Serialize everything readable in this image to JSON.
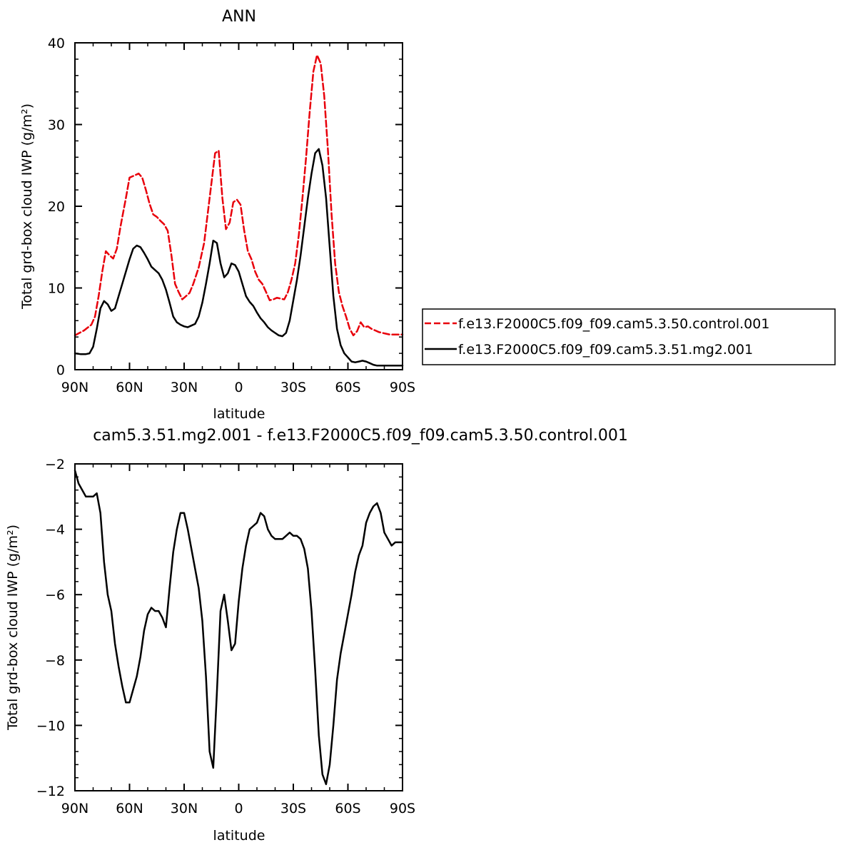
{
  "chart_data": [
    {
      "type": "line",
      "title": "ANN",
      "xlabel": "latitude",
      "ylabel": "Total grd-box cloud IWP (g/m²)",
      "xlim": [
        90,
        -90
      ],
      "ylim": [
        0,
        40
      ],
      "x_ticks": [
        90,
        60,
        30,
        0,
        -30,
        -60,
        -90
      ],
      "x_tick_labels": [
        "90N",
        "60N",
        "30N",
        "0",
        "30S",
        "60S",
        "90S"
      ],
      "y_ticks": [
        0,
        10,
        20,
        30,
        40
      ],
      "y_tick_labels": [
        "0",
        "10",
        "20",
        "30",
        "40"
      ],
      "legend_position": "right",
      "series": [
        {
          "name": "f.e13.F2000C5.f09_f09.cam5.3.50.control.001",
          "color": "#e8000b",
          "dash": "dashed",
          "x": [
            90,
            85,
            81,
            79,
            77,
            75,
            73,
            71,
            69,
            67,
            65,
            62,
            60,
            57,
            55,
            53,
            51,
            49,
            47,
            45,
            43,
            41,
            39,
            37,
            35,
            33,
            31,
            29,
            27,
            25,
            22,
            19,
            16,
            13,
            11,
            9,
            7,
            5,
            3,
            1,
            -1,
            -3,
            -5,
            -7,
            -9,
            -11,
            -13,
            -15,
            -17,
            -19,
            -21,
            -23,
            -25,
            -27,
            -29,
            -31,
            -33,
            -35,
            -37,
            -39,
            -41,
            -43,
            -45,
            -47,
            -49,
            -51,
            -53,
            -55,
            -57,
            -59,
            -61,
            -63,
            -65,
            -67,
            -69,
            -71,
            -73,
            -75,
            -77,
            -79,
            -81,
            -83,
            -85,
            -87,
            -89,
            -90
          ],
          "y": [
            4.2,
            4.8,
            5.5,
            6.5,
            9.0,
            12.0,
            14.5,
            14.0,
            13.6,
            14.8,
            17.5,
            21.0,
            23.5,
            23.8,
            24.0,
            23.5,
            22.0,
            20.3,
            19.0,
            18.7,
            18.2,
            17.8,
            17.0,
            14.0,
            10.5,
            9.5,
            8.6,
            9.0,
            9.4,
            10.5,
            12.5,
            15.5,
            21.0,
            26.5,
            26.8,
            21.0,
            17.2,
            18.0,
            20.5,
            20.8,
            20.2,
            17.0,
            14.5,
            13.5,
            12.0,
            11.0,
            10.5,
            9.5,
            8.5,
            8.6,
            8.8,
            8.7,
            8.6,
            9.5,
            11.0,
            13.0,
            16.5,
            21.0,
            26.0,
            31.5,
            36.5,
            38.5,
            37.5,
            33.5,
            27.0,
            19.0,
            13.0,
            9.5,
            7.8,
            6.5,
            5.0,
            4.2,
            4.7,
            5.8,
            5.2,
            5.3,
            5.0,
            4.8,
            4.6,
            4.5,
            4.4,
            4.3,
            4.3,
            4.3,
            4.3,
            4.3
          ]
        },
        {
          "name": "f.e13.F2000C5.f09_f09.cam5.3.51.mg2.001",
          "color": "#000000",
          "dash": "solid",
          "x": [
            90,
            87,
            84,
            82,
            80,
            78,
            76,
            74,
            72,
            70,
            68,
            66,
            64,
            62,
            60,
            58,
            56,
            54,
            52,
            50,
            48,
            46,
            44,
            42,
            40,
            38,
            36,
            34,
            32,
            30,
            28,
            26,
            24,
            22,
            20,
            18,
            16,
            14,
            12,
            10,
            8,
            6,
            4,
            2,
            0,
            -2,
            -4,
            -6,
            -8,
            -10,
            -12,
            -14,
            -16,
            -18,
            -20,
            -22,
            -24,
            -26,
            -28,
            -30,
            -32,
            -34,
            -36,
            -38,
            -40,
            -42,
            -44,
            -46,
            -48,
            -50,
            -52,
            -54,
            -56,
            -58,
            -60,
            -62,
            -64,
            -66,
            -68,
            -70,
            -72,
            -74,
            -76,
            -78,
            -80,
            -82,
            -84,
            -86,
            -88,
            -90
          ],
          "y": [
            2.0,
            1.9,
            1.9,
            2.0,
            2.8,
            5.0,
            7.5,
            8.4,
            8.0,
            7.2,
            7.5,
            9.0,
            10.5,
            12.0,
            13.5,
            14.8,
            15.2,
            15.0,
            14.3,
            13.5,
            12.6,
            12.2,
            11.8,
            11.0,
            9.8,
            8.2,
            6.5,
            5.8,
            5.5,
            5.3,
            5.2,
            5.4,
            5.6,
            6.5,
            8.2,
            10.5,
            13.0,
            15.8,
            15.5,
            13.0,
            11.3,
            11.8,
            13.0,
            12.8,
            12.0,
            10.5,
            9.0,
            8.3,
            7.8,
            7.0,
            6.3,
            5.8,
            5.2,
            4.8,
            4.5,
            4.2,
            4.1,
            4.5,
            6.0,
            8.5,
            11.0,
            14.0,
            17.5,
            21.0,
            24.0,
            26.5,
            27.0,
            25.0,
            21.0,
            15.0,
            9.0,
            5.0,
            3.0,
            2.0,
            1.5,
            1.0,
            0.9,
            1.0,
            1.1,
            1.0,
            0.8,
            0.6,
            0.5,
            0.5,
            0.5,
            0.5,
            0.5,
            0.5,
            0.5,
            0.5
          ]
        }
      ]
    },
    {
      "type": "line",
      "title": "cam5.3.51.mg2.001 - f.e13.F2000C5.f09_f09.cam5.3.50.control.001",
      "xlabel": "latitude",
      "ylabel": "Total grd-box cloud IWP (g/m²)",
      "xlim": [
        90,
        -90
      ],
      "ylim": [
        -12,
        -2
      ],
      "x_ticks": [
        90,
        60,
        30,
        0,
        -30,
        -60,
        -90
      ],
      "x_tick_labels": [
        "90N",
        "60N",
        "30N",
        "0",
        "30S",
        "60S",
        "90S"
      ],
      "y_ticks": [
        -12,
        -10,
        -8,
        -6,
        -4,
        -2
      ],
      "y_tick_labels": [
        "−12",
        "−10",
        "−8",
        "−6",
        "−4",
        "−2"
      ],
      "series": [
        {
          "color": "#000000",
          "dash": "solid",
          "x": [
            90,
            88,
            86,
            84,
            82,
            80,
            78,
            76,
            74,
            72,
            70,
            68,
            66,
            64,
            62,
            60,
            58,
            56,
            54,
            52,
            50,
            48,
            46,
            44,
            42,
            40,
            38,
            36,
            34,
            32,
            30,
            28,
            26,
            24,
            22,
            20,
            18,
            16,
            14,
            12,
            10,
            8,
            6,
            4,
            2,
            0,
            -2,
            -4,
            -6,
            -8,
            -10,
            -12,
            -14,
            -16,
            -18,
            -20,
            -22,
            -24,
            -26,
            -28,
            -30,
            -32,
            -34,
            -36,
            -38,
            -40,
            -42,
            -44,
            -46,
            -48,
            -50,
            -52,
            -54,
            -56,
            -58,
            -60,
            -62,
            -64,
            -66,
            -68,
            -70,
            -72,
            -74,
            -76,
            -78,
            -80,
            -82,
            -84,
            -86,
            -88,
            -90
          ],
          "y": [
            -2.2,
            -2.6,
            -2.8,
            -3.0,
            -3.0,
            -3.0,
            -2.9,
            -3.5,
            -5.0,
            -6.0,
            -6.5,
            -7.5,
            -8.2,
            -8.8,
            -9.3,
            -9.3,
            -8.9,
            -8.5,
            -7.9,
            -7.1,
            -6.6,
            -6.4,
            -6.5,
            -6.5,
            -6.7,
            -7.0,
            -5.8,
            -4.7,
            -4.0,
            -3.5,
            -3.5,
            -4.0,
            -4.6,
            -5.2,
            -5.8,
            -6.8,
            -8.5,
            -10.8,
            -11.3,
            -9.0,
            -6.5,
            -6.0,
            -6.8,
            -7.7,
            -7.5,
            -6.2,
            -5.2,
            -4.5,
            -4.0,
            -3.9,
            -3.8,
            -3.5,
            -3.6,
            -4.0,
            -4.2,
            -4.3,
            -4.3,
            -4.3,
            -4.2,
            -4.1,
            -4.2,
            -4.2,
            -4.3,
            -4.6,
            -5.2,
            -6.5,
            -8.3,
            -10.3,
            -11.5,
            -11.8,
            -11.2,
            -10.0,
            -8.6,
            -7.8,
            -7.2,
            -6.6,
            -6.0,
            -5.3,
            -4.8,
            -4.5,
            -3.8,
            -3.5,
            -3.3,
            -3.2,
            -3.5,
            -4.1,
            -4.3,
            -4.5,
            -4.4,
            -4.4,
            -4.4
          ]
        }
      ]
    }
  ]
}
